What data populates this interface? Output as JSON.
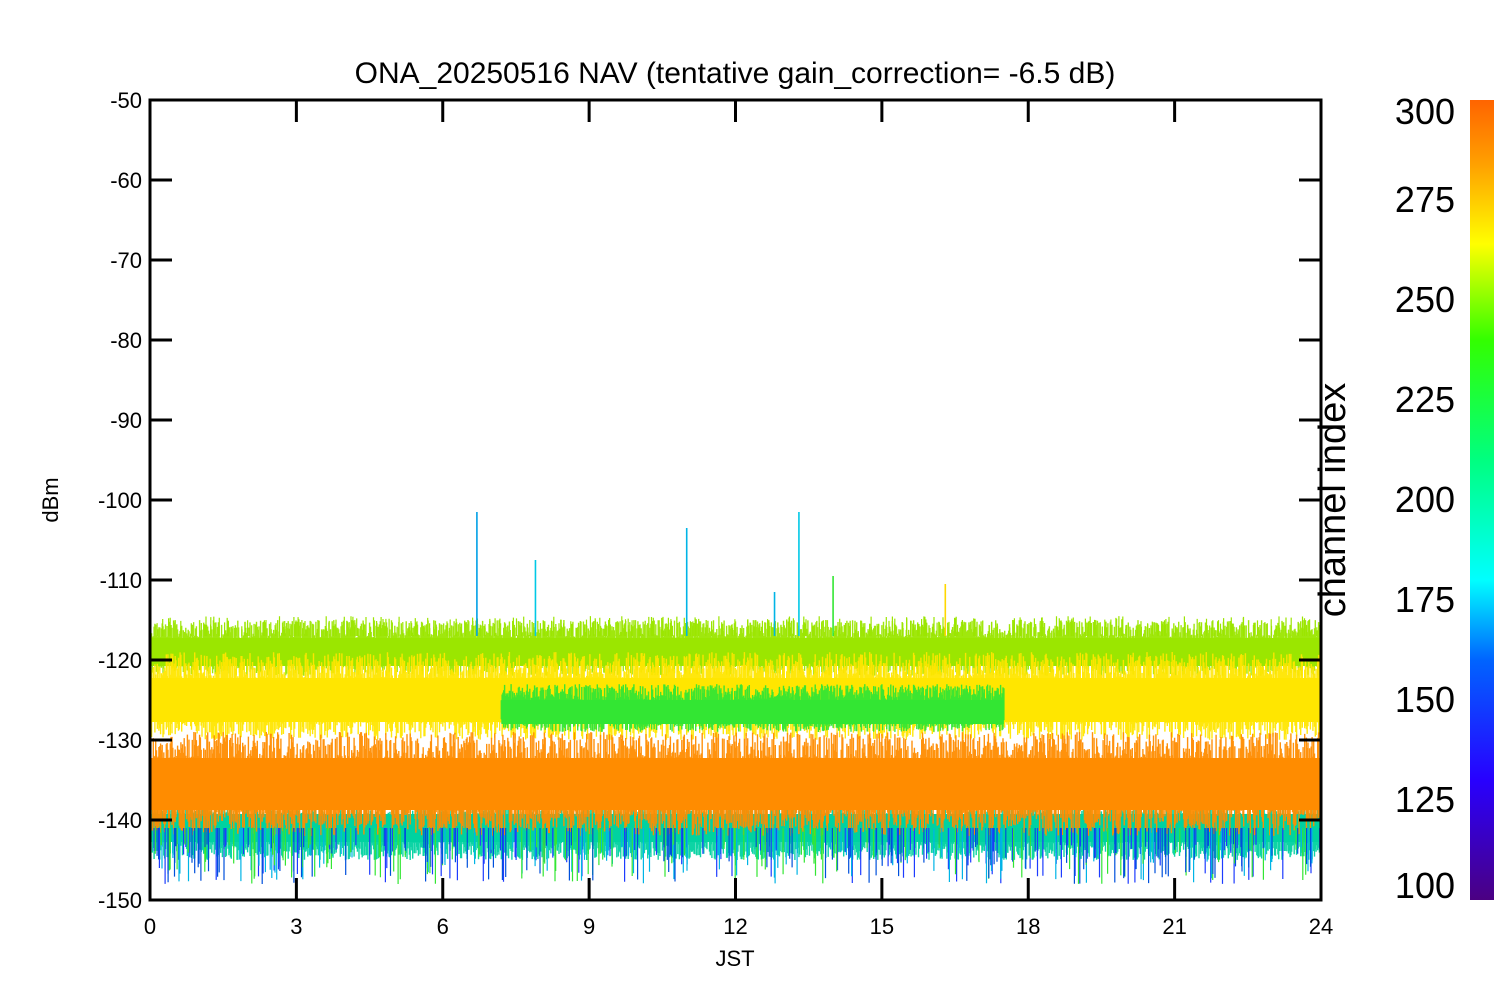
{
  "chart_data": {
    "type": "line",
    "title": "ONA_20250516 NAV (tentative gain_correction= -6.5 dB)",
    "xlabel": "JST",
    "ylabel": "dBm",
    "xlim": [
      0,
      24
    ],
    "ylim": [
      -150,
      -50
    ],
    "x_ticks": [
      "0",
      "3",
      "6",
      "9",
      "12",
      "15",
      "18",
      "21",
      "24"
    ],
    "y_ticks": [
      "-50",
      "-60",
      "-70",
      "-80",
      "-90",
      "-100",
      "-110",
      "-120",
      "-130",
      "-140",
      "-150"
    ],
    "grid": false,
    "colorbar": {
      "label": "channel index",
      "range": [
        100,
        300
      ],
      "ticks": [
        "300",
        "275",
        "250",
        "225",
        "200",
        "175",
        "150",
        "125",
        "100"
      ],
      "colormap": "rainbow"
    },
    "bands": [
      {
        "channel_index": 288,
        "color": "#ff8c00",
        "y_center": -135.5,
        "y_min": -142,
        "y_max": -129
      },
      {
        "channel_index": 270,
        "color": "#ffe600",
        "y_center": -125,
        "y_min": -130,
        "y_max": -119
      },
      {
        "channel_index": 258,
        "color": "#9be600",
        "y_center": -119,
        "y_min": -122,
        "y_max": -115
      },
      {
        "channel_index": 235,
        "color": "#33e633",
        "y_center": -126.5,
        "y_min": -129,
        "y_max": -123,
        "x_start": 7.2,
        "x_end": 17.5
      },
      {
        "channel_index": 205,
        "color": "#00d2a0",
        "y_center": -141,
        "y_min": -145,
        "y_max": -138
      }
    ],
    "spikes": [
      {
        "x": 6.7,
        "y": -101.5,
        "color": "#00a0e6"
      },
      {
        "x": 7.9,
        "y": -107.5,
        "color": "#00c8e6"
      },
      {
        "x": 11.0,
        "y": -103.5,
        "color": "#00b4e6"
      },
      {
        "x": 13.3,
        "y": -101.5,
        "color": "#00c8e6"
      },
      {
        "x": 14.0,
        "y": -109.5,
        "color": "#33e633"
      },
      {
        "x": 16.3,
        "y": -110.5,
        "color": "#ffd700"
      },
      {
        "x": 12.8,
        "y": -111.5,
        "color": "#00b4e6"
      }
    ]
  }
}
